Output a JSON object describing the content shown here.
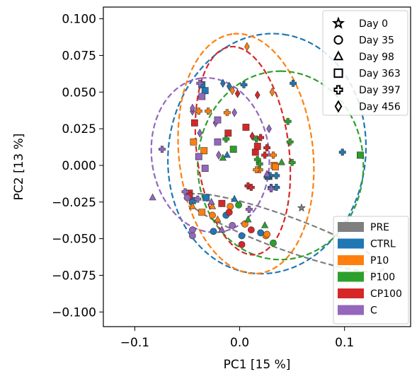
{
  "chart_data": {
    "type": "scatter",
    "xlabel": "PC1 [15 %]",
    "ylabel": "PC2 [13 %]",
    "xlim": [
      -0.13,
      0.163
    ],
    "ylim": [
      -0.11,
      0.108
    ],
    "x_ticks": [
      -0.1,
      0.0,
      0.1
    ],
    "x_tick_labels": [
      "−0.1",
      "0.0",
      "0.1"
    ],
    "y_ticks": [
      0.1,
      0.075,
      0.05,
      0.025,
      0.0,
      -0.025,
      -0.05,
      -0.075,
      -0.1
    ],
    "y_tick_labels": [
      "0.100",
      "0.075",
      "0.050",
      "0.025",
      "0.000",
      "−0.025",
      "−0.050",
      "−0.075",
      "−0.100"
    ],
    "grid": false,
    "group_legend": {
      "placement": "lower-right",
      "entries": [
        {
          "name": "PRE",
          "color": "#7f7f7f"
        },
        {
          "name": "CTRL",
          "color": "#1f77b4"
        },
        {
          "name": "P10",
          "color": "#ff7f0e"
        },
        {
          "name": "P100",
          "color": "#2ca02c"
        },
        {
          "name": "CP100",
          "color": "#d62728"
        },
        {
          "name": "C",
          "color": "#9467bd"
        }
      ]
    },
    "marker_legend": {
      "placement": "upper-right",
      "entries": [
        {
          "name": "Day 0",
          "marker": "star"
        },
        {
          "name": "Day 35",
          "marker": "circle"
        },
        {
          "name": "Day 98",
          "marker": "triangle"
        },
        {
          "name": "Day 363",
          "marker": "square"
        },
        {
          "name": "Day 397",
          "marker": "plus"
        },
        {
          "name": "Day 456",
          "marker": "diamond"
        }
      ]
    },
    "ellipses": [
      {
        "group": "PRE",
        "color": "#7f7f7f",
        "cx": 0.043,
        "cy": -0.046,
        "width": 0.2,
        "height": 0.032,
        "angle_deg": 20
      },
      {
        "group": "CTRL",
        "color": "#1f77b4",
        "cx": 0.026,
        "cy": 0.008,
        "width": 0.23,
        "height": 0.188,
        "angle_deg": -82
      },
      {
        "group": "P10",
        "color": "#ff7f0e",
        "cx": 0.006,
        "cy": 0.008,
        "width": 0.23,
        "height": 0.128,
        "angle_deg": -96
      },
      {
        "group": "P100",
        "color": "#2ca02c",
        "cx": 0.039,
        "cy": 0.0,
        "width": 0.18,
        "height": 0.158,
        "angle_deg": -90
      },
      {
        "group": "CP100",
        "color": "#d62728",
        "cx": 0.003,
        "cy": 0.01,
        "width": 0.2,
        "height": 0.088,
        "angle_deg": -97
      },
      {
        "group": "C",
        "color": "#9467bd",
        "cx": -0.028,
        "cy": 0.007,
        "width": 0.148,
        "height": 0.112,
        "angle_deg": -97
      }
    ],
    "points": [
      {
        "x": 0.059,
        "y": -0.029,
        "group": "PRE",
        "marker": "star"
      },
      {
        "x": -0.016,
        "y": 0.056,
        "group": "CTRL",
        "marker": "diamond"
      },
      {
        "x": -0.036,
        "y": 0.055,
        "group": "CTRL",
        "marker": "square"
      },
      {
        "x": -0.033,
        "y": 0.051,
        "group": "CTRL",
        "marker": "square"
      },
      {
        "x": -0.01,
        "y": 0.054,
        "group": "CTRL",
        "marker": "diamond"
      },
      {
        "x": 0.051,
        "y": 0.056,
        "group": "CTRL",
        "marker": "plus"
      },
      {
        "x": 0.098,
        "y": 0.009,
        "group": "CTRL",
        "marker": "plus"
      },
      {
        "x": -0.032,
        "y": -0.022,
        "group": "CTRL",
        "marker": "square"
      },
      {
        "x": -0.012,
        "y": 0.007,
        "group": "CTRL",
        "marker": "triangle"
      },
      {
        "x": 0.027,
        "y": -0.008,
        "group": "CTRL",
        "marker": "triangle"
      },
      {
        "x": 0.028,
        "y": -0.007,
        "group": "CTRL",
        "marker": "triangle"
      },
      {
        "x": 0.026,
        "y": -0.007,
        "group": "CTRL",
        "marker": "triangle"
      },
      {
        "x": 0.029,
        "y": -0.007,
        "group": "CTRL",
        "marker": "plus"
      },
      {
        "x": 0.028,
        "y": -0.008,
        "group": "CTRL",
        "marker": "triangle"
      },
      {
        "x": 0.029,
        "y": -0.007,
        "group": "CTRL",
        "marker": "plus"
      },
      {
        "x": 0.027,
        "y": -0.007,
        "group": "CTRL",
        "marker": "triangle"
      },
      {
        "x": 0.035,
        "y": -0.007,
        "group": "CTRL",
        "marker": "plus"
      },
      {
        "x": 0.035,
        "y": -0.015,
        "group": "CTRL",
        "marker": "plus"
      },
      {
        "x": 0.03,
        "y": -0.015,
        "group": "CTRL",
        "marker": "plus"
      },
      {
        "x": -0.045,
        "y": -0.024,
        "group": "CTRL",
        "marker": "square"
      },
      {
        "x": -0.013,
        "y": -0.034,
        "group": "CTRL",
        "marker": "circle"
      },
      {
        "x": -0.025,
        "y": -0.045,
        "group": "CTRL",
        "marker": "circle"
      },
      {
        "x": 0.002,
        "y": -0.048,
        "group": "CTRL",
        "marker": "circle"
      },
      {
        "x": -0.005,
        "y": -0.023,
        "group": "CTRL",
        "marker": "triangle"
      },
      {
        "x": 0.02,
        "y": -0.046,
        "group": "CTRL",
        "marker": "circle"
      },
      {
        "x": 0.004,
        "y": 0.055,
        "group": "CTRL",
        "marker": "plus"
      },
      {
        "x": 0.031,
        "y": 0.05,
        "group": "P10",
        "marker": "diamond"
      },
      {
        "x": -0.007,
        "y": 0.051,
        "group": "P10",
        "marker": "diamond"
      },
      {
        "x": -0.039,
        "y": 0.037,
        "group": "P10",
        "marker": "plus"
      },
      {
        "x": -0.03,
        "y": 0.037,
        "group": "P10",
        "marker": "plus"
      },
      {
        "x": -0.044,
        "y": 0.016,
        "group": "P10",
        "marker": "square"
      },
      {
        "x": -0.034,
        "y": 0.01,
        "group": "P10",
        "marker": "square"
      },
      {
        "x": 0.007,
        "y": 0.081,
        "group": "P10",
        "marker": "diamond"
      },
      {
        "x": -0.012,
        "y": 0.036,
        "group": "P10",
        "marker": "plus"
      },
      {
        "x": 0.032,
        "y": 0.007,
        "group": "P10",
        "marker": "plus"
      },
      {
        "x": 0.033,
        "y": 0.0,
        "group": "P10",
        "marker": "square"
      },
      {
        "x": 0.034,
        "y": -0.001,
        "group": "P10",
        "marker": "square"
      },
      {
        "x": 0.019,
        "y": -0.003,
        "group": "P10",
        "marker": "plus"
      },
      {
        "x": 0.016,
        "y": -0.003,
        "group": "P10",
        "marker": "plus"
      },
      {
        "x": -0.026,
        "y": -0.028,
        "group": "P10",
        "marker": "triangle"
      },
      {
        "x": -0.045,
        "y": -0.028,
        "group": "P10",
        "marker": "triangle"
      },
      {
        "x": -0.009,
        "y": -0.028,
        "group": "P10",
        "marker": "circle"
      },
      {
        "x": -0.026,
        "y": -0.034,
        "group": "P10",
        "marker": "circle"
      },
      {
        "x": -0.021,
        "y": -0.037,
        "group": "P10",
        "marker": "triangle"
      },
      {
        "x": -0.036,
        "y": -0.032,
        "group": "P10",
        "marker": "square"
      },
      {
        "x": 0.025,
        "y": -0.048,
        "group": "P10",
        "marker": "circle"
      },
      {
        "x": 0.026,
        "y": -0.047,
        "group": "P10",
        "marker": "circle"
      },
      {
        "x": 0.005,
        "y": -0.04,
        "group": "P10",
        "marker": "circle"
      },
      {
        "x": 0.048,
        "y": 0.016,
        "group": "P100",
        "marker": "plus"
      },
      {
        "x": 0.046,
        "y": 0.03,
        "group": "P100",
        "marker": "plus"
      },
      {
        "x": 0.05,
        "y": 0.002,
        "group": "P100",
        "marker": "plus"
      },
      {
        "x": 0.115,
        "y": 0.007,
        "group": "P100",
        "marker": "square"
      },
      {
        "x": -0.013,
        "y": 0.018,
        "group": "P100",
        "marker": "plus"
      },
      {
        "x": -0.006,
        "y": 0.011,
        "group": "P100",
        "marker": "square"
      },
      {
        "x": 0.016,
        "y": 0.018,
        "group": "P100",
        "marker": "plus"
      },
      {
        "x": 0.017,
        "y": 0.004,
        "group": "P100",
        "marker": "plus"
      },
      {
        "x": 0.019,
        "y": 0.001,
        "group": "P100",
        "marker": "plus"
      },
      {
        "x": 0.04,
        "y": 0.002,
        "group": "P100",
        "marker": "triangle"
      },
      {
        "x": -0.016,
        "y": 0.005,
        "group": "P100",
        "marker": "triangle"
      },
      {
        "x": -0.001,
        "y": -0.027,
        "group": "P100",
        "marker": "circle"
      },
      {
        "x": 0.008,
        "y": -0.037,
        "group": "P100",
        "marker": "triangle"
      },
      {
        "x": 0.032,
        "y": -0.053,
        "group": "P100",
        "marker": "circle"
      },
      {
        "x": 0.024,
        "y": -0.041,
        "group": "P100",
        "marker": "triangle"
      },
      {
        "x": -0.002,
        "y": 0.049,
        "group": "CP100",
        "marker": "diamond"
      },
      {
        "x": 0.017,
        "y": 0.048,
        "group": "CP100",
        "marker": "diamond"
      },
      {
        "x": 0.02,
        "y": 0.019,
        "group": "CP100",
        "marker": "plus"
      },
      {
        "x": -0.011,
        "y": 0.022,
        "group": "CP100",
        "marker": "square"
      },
      {
        "x": 0.006,
        "y": 0.026,
        "group": "CP100",
        "marker": "square"
      },
      {
        "x": 0.024,
        "y": 0.007,
        "group": "CP100",
        "marker": "plus"
      },
      {
        "x": -0.043,
        "y": 0.029,
        "group": "CP100",
        "marker": "square"
      },
      {
        "x": -0.048,
        "y": -0.019,
        "group": "CP100",
        "marker": "square"
      },
      {
        "x": -0.048,
        "y": -0.021,
        "group": "CP100",
        "marker": "square"
      },
      {
        "x": 0.015,
        "y": 0.009,
        "group": "CP100",
        "marker": "square"
      },
      {
        "x": 0.026,
        "y": 0.012,
        "group": "CP100",
        "marker": "plus"
      },
      {
        "x": 0.008,
        "y": -0.014,
        "group": "CP100",
        "marker": "plus"
      },
      {
        "x": 0.011,
        "y": -0.015,
        "group": "CP100",
        "marker": "plus"
      },
      {
        "x": -0.017,
        "y": -0.026,
        "group": "CP100",
        "marker": "square"
      },
      {
        "x": -0.01,
        "y": -0.032,
        "group": "CP100",
        "marker": "circle"
      },
      {
        "x": 0.002,
        "y": -0.054,
        "group": "CP100",
        "marker": "circle"
      },
      {
        "x": 0.011,
        "y": -0.044,
        "group": "CP100",
        "marker": "circle"
      },
      {
        "x": 0.012,
        "y": 0.02,
        "group": "CP100",
        "marker": "diamond"
      },
      {
        "x": 0.017,
        "y": 0.013,
        "group": "CP100",
        "marker": "square"
      },
      {
        "x": -0.038,
        "y": 0.056,
        "group": "C",
        "marker": "plus"
      },
      {
        "x": -0.036,
        "y": 0.047,
        "group": "C",
        "marker": "square"
      },
      {
        "x": -0.045,
        "y": 0.037,
        "group": "C",
        "marker": "diamond"
      },
      {
        "x": -0.045,
        "y": 0.039,
        "group": "C",
        "marker": "diamond"
      },
      {
        "x": -0.005,
        "y": 0.036,
        "group": "C",
        "marker": "diamond"
      },
      {
        "x": -0.023,
        "y": 0.029,
        "group": "C",
        "marker": "diamond"
      },
      {
        "x": -0.021,
        "y": 0.031,
        "group": "C",
        "marker": "square"
      },
      {
        "x": -0.074,
        "y": 0.011,
        "group": "C",
        "marker": "plus"
      },
      {
        "x": -0.038,
        "y": 0.022,
        "group": "C",
        "marker": "diamond"
      },
      {
        "x": -0.021,
        "y": 0.016,
        "group": "C",
        "marker": "square"
      },
      {
        "x": -0.039,
        "y": 0.006,
        "group": "C",
        "marker": "square"
      },
      {
        "x": -0.033,
        "y": -0.002,
        "group": "C",
        "marker": "square"
      },
      {
        "x": -0.02,
        "y": 0.007,
        "group": "C",
        "marker": "diamond"
      },
      {
        "x": 0.028,
        "y": 0.025,
        "group": "C",
        "marker": "diamond"
      },
      {
        "x": 0.026,
        "y": -0.006,
        "group": "C",
        "marker": "triangle"
      },
      {
        "x": -0.083,
        "y": -0.022,
        "group": "C",
        "marker": "triangle"
      },
      {
        "x": -0.052,
        "y": -0.018,
        "group": "C",
        "marker": "plus"
      },
      {
        "x": -0.04,
        "y": -0.023,
        "group": "C",
        "marker": "plus"
      },
      {
        "x": -0.045,
        "y": -0.044,
        "group": "C",
        "marker": "circle"
      },
      {
        "x": -0.045,
        "y": -0.048,
        "group": "C",
        "marker": "circle"
      },
      {
        "x": -0.027,
        "y": -0.025,
        "group": "C",
        "marker": "triangle"
      },
      {
        "x": 0.009,
        "y": -0.03,
        "group": "C",
        "marker": "plus"
      },
      {
        "x": -0.007,
        "y": -0.041,
        "group": "C",
        "marker": "circle"
      },
      {
        "x": 0.03,
        "y": -0.016,
        "group": "C",
        "marker": "plus"
      },
      {
        "x": -0.017,
        "y": -0.044,
        "group": "C",
        "marker": "triangle"
      },
      {
        "x": -0.05,
        "y": -0.022,
        "group": "C",
        "marker": "circle"
      }
    ]
  }
}
